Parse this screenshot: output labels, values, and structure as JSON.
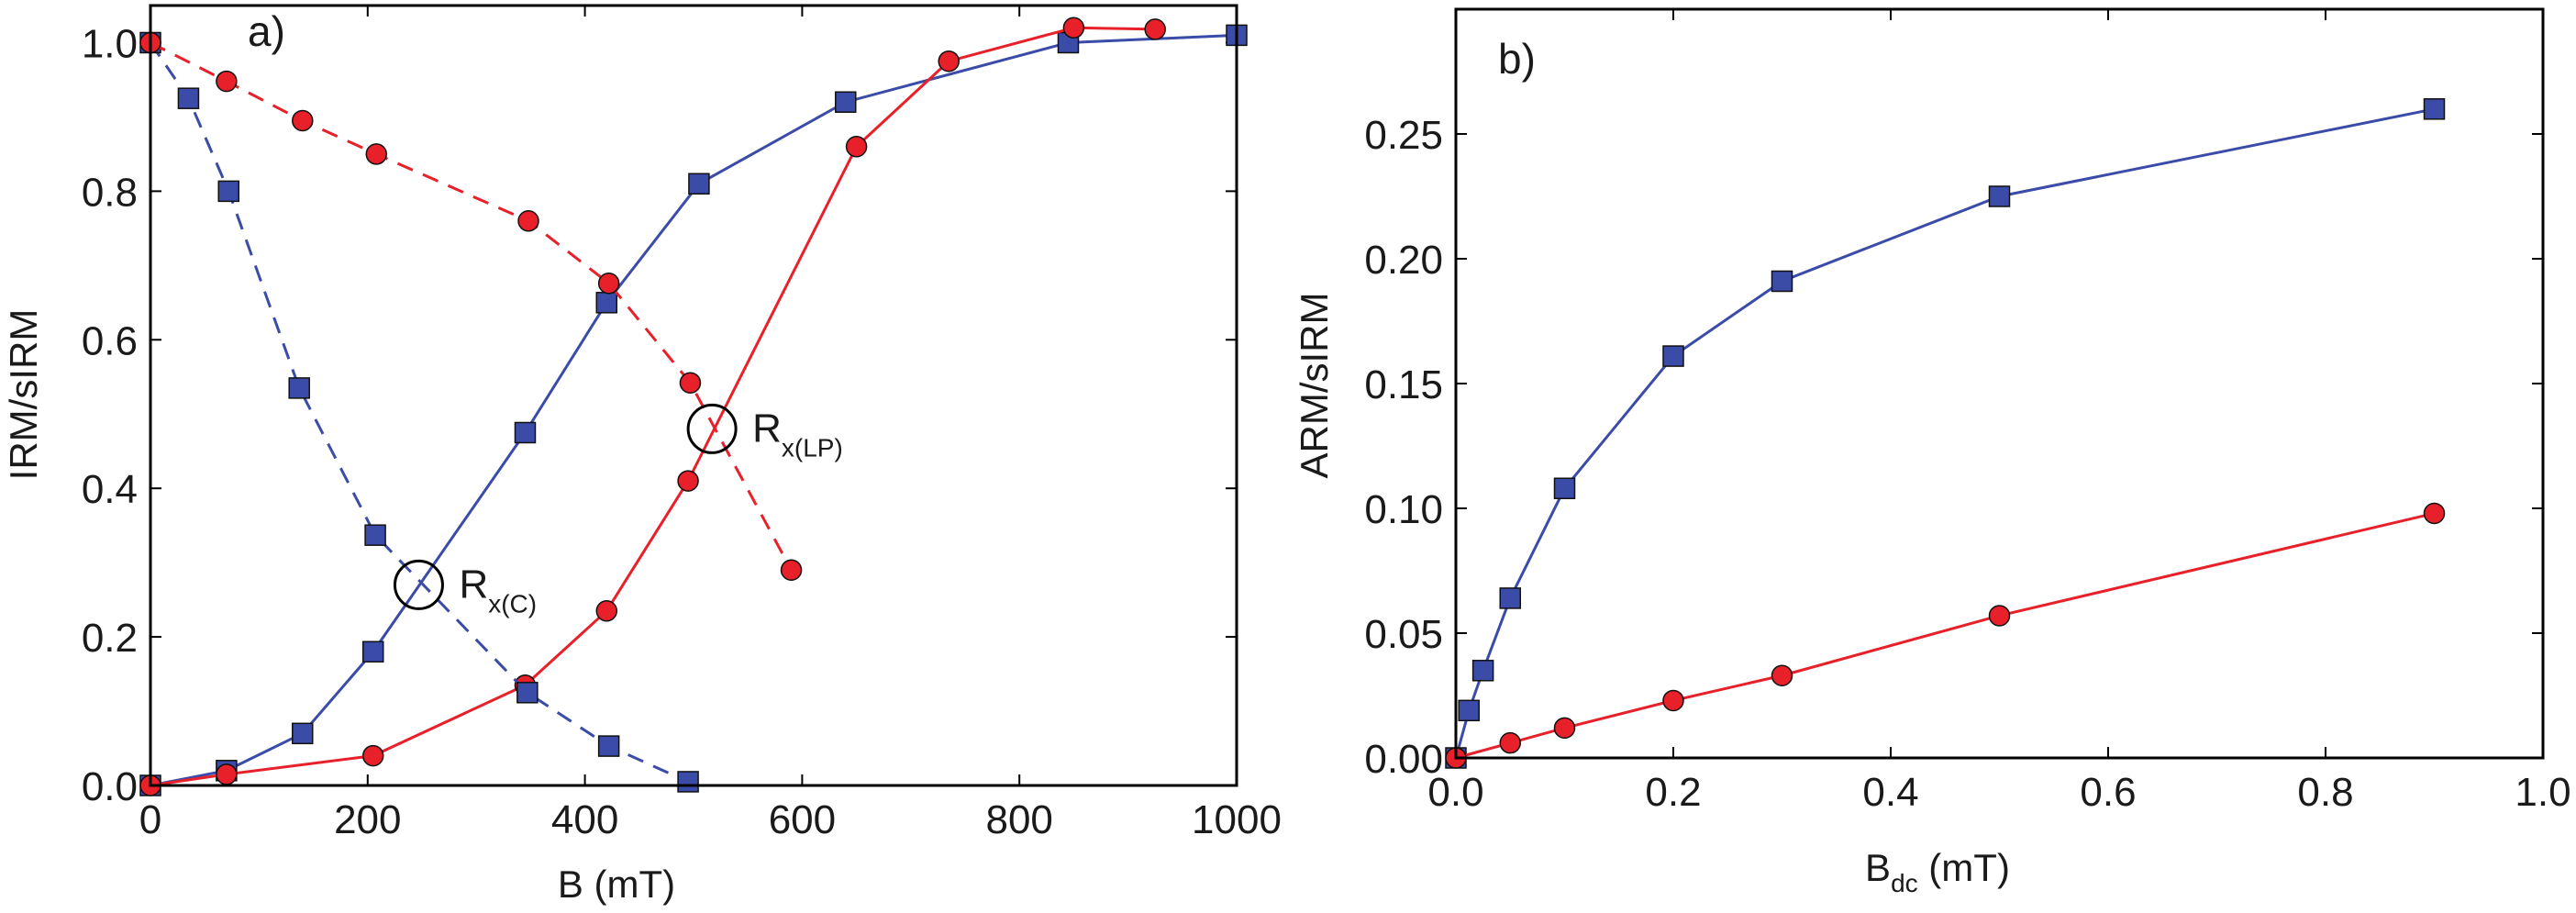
{
  "colors": {
    "blue": "#3b4ba8",
    "red": "#e8202a",
    "axis": "#000000"
  },
  "chart_data": [
    {
      "type": "line",
      "panel_label": "a)",
      "xlabel": "B (mT)",
      "ylabel": "IRM/sIRM",
      "xlim": [
        0,
        1000
      ],
      "ylim": [
        0,
        1.05
      ],
      "xticks": [
        "0",
        "200",
        "400",
        "600",
        "800",
        "1000"
      ],
      "xtick_values": [
        0,
        200,
        400,
        600,
        800,
        1000
      ],
      "yticks": [
        "0.0",
        "0.2",
        "0.4",
        "0.6",
        "0.8",
        "1.0"
      ],
      "ytick_values": [
        0,
        0.2,
        0.4,
        0.6,
        0.8,
        1.0
      ],
      "grid": false,
      "series": [
        {
          "color": "blue",
          "marker": "square",
          "linestyle": "solid",
          "x": [
            0,
            70,
            140,
            205,
            345,
            420,
            505,
            640,
            845,
            1000
          ],
          "y": [
            0,
            0.02,
            0.07,
            0.18,
            0.475,
            0.65,
            0.81,
            0.92,
            1.0,
            1.01
          ]
        },
        {
          "color": "red",
          "marker": "circle",
          "linestyle": "solid",
          "x": [
            0,
            70,
            205,
            345,
            420,
            495,
            650,
            735,
            850,
            925
          ],
          "y": [
            0,
            0.015,
            0.04,
            0.135,
            0.235,
            0.41,
            0.86,
            0.975,
            1.02,
            1.018
          ]
        },
        {
          "color": "blue",
          "marker": "square",
          "linestyle": "dashed",
          "x": [
            0,
            35,
            72,
            137,
            207,
            347,
            422,
            495
          ],
          "y": [
            1.0,
            0.925,
            0.8,
            0.535,
            0.337,
            0.125,
            0.053,
            0.005
          ]
        },
        {
          "color": "red",
          "marker": "circle",
          "linestyle": "dashed",
          "x": [
            0,
            70,
            140,
            208,
            348,
            422,
            497,
            590
          ],
          "y": [
            1.0,
            0.948,
            0.895,
            0.85,
            0.76,
            0.676,
            0.542,
            0.29
          ]
        }
      ],
      "annotations": [
        {
          "main": "R",
          "sub": "x(C)",
          "x": 247,
          "y": 0.27
        },
        {
          "main": "R",
          "sub": "x(LP)",
          "x": 517,
          "y": 0.48
        }
      ]
    },
    {
      "type": "line",
      "panel_label": "b)",
      "xlabel": "B",
      "xlabel_sub": "dc",
      "xlabel_unit": " (mT)",
      "ylabel": "ARM/sIRM",
      "xlim": [
        0,
        1.0
      ],
      "ylim": [
        0,
        0.3
      ],
      "xticks": [
        "0.0",
        "0.2",
        "0.4",
        "0.6",
        "0.8",
        "1.0"
      ],
      "xtick_values": [
        0,
        0.2,
        0.4,
        0.6,
        0.8,
        1.0
      ],
      "yticks": [
        "0.00",
        "0.05",
        "0.10",
        "0.15",
        "0.20",
        "0.25"
      ],
      "ytick_values": [
        0,
        0.05,
        0.1,
        0.15,
        0.2,
        0.25
      ],
      "grid": false,
      "series": [
        {
          "color": "blue",
          "marker": "square",
          "linestyle": "solid",
          "x": [
            0,
            0.012,
            0.025,
            0.05,
            0.1,
            0.2,
            0.3,
            0.5,
            0.9
          ],
          "y": [
            0,
            0.019,
            0.035,
            0.064,
            0.108,
            0.161,
            0.191,
            0.225,
            0.26
          ]
        },
        {
          "color": "red",
          "marker": "circle",
          "linestyle": "solid",
          "x": [
            0,
            0.05,
            0.1,
            0.2,
            0.3,
            0.5,
            0.9
          ],
          "y": [
            0,
            0.006,
            0.012,
            0.023,
            0.033,
            0.057,
            0.098
          ]
        }
      ],
      "annotations": []
    }
  ]
}
